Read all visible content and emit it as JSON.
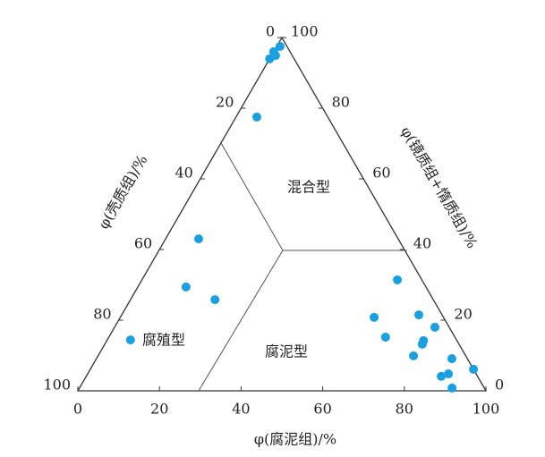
{
  "chart_data": {
    "type": "ternary",
    "bottom_axis": {
      "label": "φ(腐泥组)/%",
      "lim": [
        0,
        100
      ],
      "ticks": [
        0,
        20,
        40,
        60,
        80,
        100
      ]
    },
    "left_axis": {
      "label": "φ(壳质组)/%",
      "lim": [
        0,
        100
      ],
      "ticks": [
        0,
        20,
        40,
        60,
        80,
        100
      ]
    },
    "right_axis": {
      "label": "φ(镜质组+惰质组)/%",
      "lim": [
        0,
        100
      ],
      "ticks": [
        0,
        20,
        40,
        60,
        80,
        100
      ]
    },
    "color": "#1a9fe0",
    "points": {
      "bottom": [
        0.8,
        0,
        1.0,
        0,
        5.1,
        8.1,
        11.8,
        20.7,
        5.7,
        62.6,
        62.2,
        72.8,
        78.5,
        67.8,
        77.6,
        77.8,
        77.3,
        87.1,
        93.9,
        87.0,
        88.4,
        91.3
      ],
      "left": [
        1.7,
        4,
        4.1,
        6,
        17.4,
        48.9,
        58.8,
        53.5,
        79.9,
        6.0,
        17.0,
        5.7,
        3.5,
        17.0,
        8.2,
        9.0,
        12.8,
        3.8,
        0,
        8.9,
        6.8,
        7.9
      ],
      "right": [
        97.5,
        96,
        94.9,
        94,
        77.5,
        43.0,
        29.4,
        25.8,
        14.4,
        31.4,
        20.8,
        21.5,
        18.0,
        15.2,
        14.2,
        13.2,
        9.9,
        9.1,
        6.1,
        4.1,
        4.8,
        0.8
      ]
    },
    "regions": [
      "混合型",
      "腐殖型",
      "腐泥型"
    ]
  }
}
